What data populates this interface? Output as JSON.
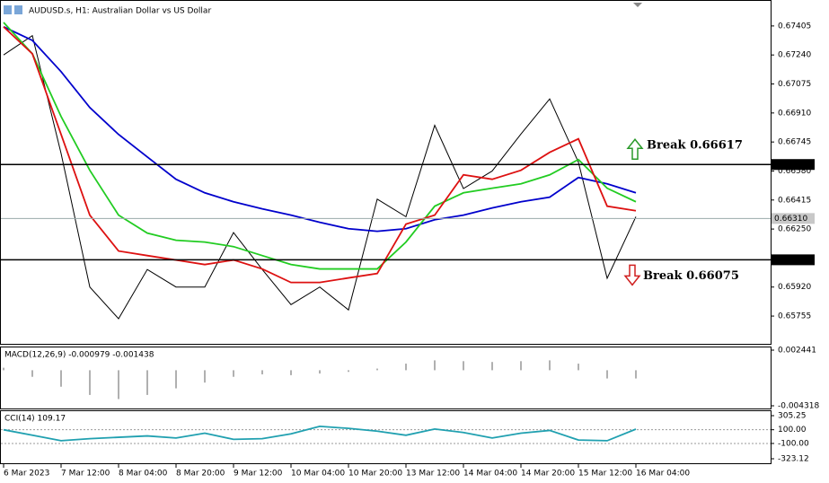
{
  "chart_data": [
    {
      "type": "line",
      "title": "AUDUSD.s, H1: Australian Dollar vs US Dollar",
      "x": [
        0,
        8,
        16,
        24,
        32,
        40,
        48,
        56,
        64,
        72,
        80,
        88,
        96,
        104,
        112,
        120,
        128,
        136,
        144,
        152,
        160,
        168,
        176
      ],
      "xlim": [
        0,
        176
      ],
      "xticks": [
        {
          "value": 0,
          "label": "6 Mar 2023"
        },
        {
          "value": 16,
          "label": "7 Mar 12:00"
        },
        {
          "value": 32,
          "label": "8 Mar 04:00"
        },
        {
          "value": 48,
          "label": "8 Mar 20:00"
        },
        {
          "value": 64,
          "label": "9 Mar 12:00"
        },
        {
          "value": 80,
          "label": "10 Mar 04:00"
        },
        {
          "value": 96,
          "label": "10 Mar 20:00"
        },
        {
          "value": 112,
          "label": "13 Mar 12:00"
        },
        {
          "value": 128,
          "label": "14 Mar 04:00"
        },
        {
          "value": 144,
          "label": "14 Mar 20:00"
        },
        {
          "value": 160,
          "label": "15 Mar 12:00"
        },
        {
          "value": 176,
          "label": "16 Mar 04:00"
        }
      ],
      "ylim": [
        0.65597,
        0.67527
      ],
      "yticks": [
        0.67405,
        {
          "value": 0.6724,
          "label": "0.67240"
        },
        0.67075,
        {
          "value": 0.6691,
          "label": "0.66910"
        },
        0.66745,
        {
          "value": 0.6658,
          "label": "0.66580"
        },
        0.66415,
        {
          "value": 0.6625,
          "label": "0.66250"
        },
        {
          "value": 0.6592,
          "label": "0.65920"
        },
        0.65755
      ],
      "series": [
        {
          "color": "#000000",
          "values": [
            0.6724,
            0.6735,
            0.6668,
            0.6592,
            0.6574,
            0.6602,
            0.6592,
            0.6592,
            0.6623,
            0.6602,
            0.6582,
            0.6592,
            0.6579,
            0.6642,
            0.6632,
            0.6684,
            0.6648,
            0.6658,
            0.6679,
            0.6699,
            0.6663,
            0.6597,
            0.6632
          ]
        },
        {
          "color": "#0000cc",
          "values": [
            0.674,
            0.67323,
            0.67145,
            0.66941,
            0.66788,
            0.6666,
            0.66533,
            0.66456,
            0.66405,
            0.66365,
            0.66329,
            0.66288,
            0.66252,
            0.66237,
            0.66252,
            0.66303,
            0.66329,
            0.6637,
            0.66405,
            0.66431,
            0.66543,
            0.66507,
            0.66456
          ]
        },
        {
          "color": "#22cc22",
          "values": [
            0.67425,
            0.67247,
            0.6689,
            0.66584,
            0.66329,
            0.66227,
            0.66186,
            0.66176,
            0.6615,
            0.66099,
            0.66048,
            0.66023,
            0.66023,
            0.66023,
            0.66176,
            0.6638,
            0.66456,
            0.66482,
            0.66507,
            0.66558,
            0.66645,
            0.66482,
            0.66405
          ]
        },
        {
          "color": "#dd1111",
          "values": [
            0.674,
            0.67247,
            0.66788,
            0.66329,
            0.66125,
            0.66099,
            0.66074,
            0.66048,
            0.66074,
            0.66023,
            0.65946,
            0.65946,
            0.65972,
            0.65997,
            0.66278,
            0.66329,
            0.66558,
            0.66533,
            0.66584,
            0.66686,
            0.66763,
            0.6638,
            0.66354
          ]
        }
      ],
      "levels": [
        0.66617,
        {
          "value": 0.6631,
          "label": "0.66310"
        },
        0.66075
      ],
      "annotations": [
        "Break 0.66617",
        "Break 0.66075"
      ]
    },
    {
      "type": "bar",
      "title": "MACD(12,26,9) -0.000979 -0.001438",
      "color": "#b0b0b0",
      "ylim": [
        -0.004318,
        0.002441
      ],
      "yticks": [
        0.002441,
        -0.004318
      ],
      "values": [
        0.0003,
        -0.0008,
        -0.002,
        -0.003,
        -0.0035,
        -0.003,
        -0.0022,
        -0.0015,
        -0.0008,
        -0.0005,
        -0.0006,
        -0.0004,
        -0.0002,
        0.0002,
        0.0008,
        0.0012,
        0.0011,
        0.001,
        0.0011,
        0.0012,
        0.0008,
        -0.001,
        -0.001
      ]
    },
    {
      "type": "line",
      "title": "CCI(14) 109.17",
      "color": "#20a0b0",
      "ylim": [
        -323.12,
        305.25
      ],
      "yticks": [
        305.25,
        {
          "value": 100,
          "label": "100.00"
        },
        {
          "value": -100,
          "label": "-100.00"
        },
        -323.12
      ],
      "values": [
        100,
        20,
        -60,
        -30,
        -10,
        10,
        -20,
        50,
        -40,
        -30,
        40,
        150,
        120,
        80,
        20,
        110,
        60,
        -20,
        50,
        90,
        -50,
        -60,
        109.17
      ]
    }
  ]
}
